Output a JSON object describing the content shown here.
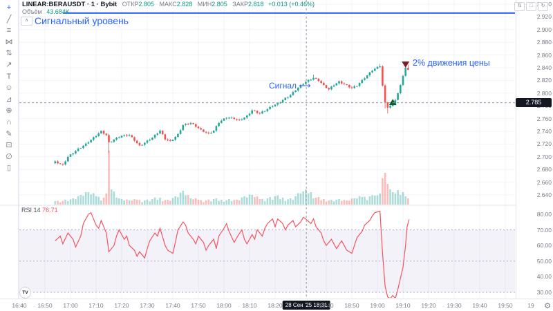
{
  "legend": {
    "symbol": "LINEAR:BERAUSDT · 1 · Bybit",
    "ohlc": [
      {
        "label": "ОТКР",
        "value": "2.805"
      },
      {
        "label": "МАКС",
        "value": "2.828"
      },
      {
        "label": "МИН",
        "value": "2.805"
      },
      {
        "label": "ЗАКР",
        "value": "2.818"
      }
    ],
    "change": "+0.013 (+0.46%)",
    "volume_label": "Объём",
    "volume_value": "43.684K",
    "collapse_glyph": "∧"
  },
  "rsi_legend": {
    "name": "RSI",
    "period": "14",
    "value": "76.71"
  },
  "annotations": {
    "signal_level_label": "Сигнальный уровень",
    "signal_label": "Сигнал",
    "signal_arrow": "⟶",
    "move_label": "2% движения цены"
  },
  "axes": {
    "price_ticks": [
      "2.940",
      "2.920",
      "2.900",
      "2.880",
      "2.860",
      "2.840",
      "2.820",
      "2.800",
      "2.780",
      "2.760",
      "2.740",
      "2.720",
      "2.700",
      "2.680",
      "2.660",
      "2.640"
    ],
    "rsi_ticks": [
      {
        "v": 80,
        "label": "80.00"
      },
      {
        "v": 70,
        "label": "70.00"
      },
      {
        "v": 60,
        "label": "60.00"
      },
      {
        "v": 50,
        "label": "50.00"
      },
      {
        "v": 40,
        "label": "40.00"
      },
      {
        "v": 30,
        "label": "30.00"
      }
    ],
    "time_ticks": [
      {
        "t": 0,
        "label": "16:40"
      },
      {
        "t": 10,
        "label": "16:50"
      },
      {
        "t": 20,
        "label": "17:00"
      },
      {
        "t": 30,
        "label": "17:10"
      },
      {
        "t": 40,
        "label": "17:20"
      },
      {
        "t": 50,
        "label": "17:30"
      },
      {
        "t": 60,
        "label": "17:40"
      },
      {
        "t": 70,
        "label": "17:50"
      },
      {
        "t": 80,
        "label": "18:00"
      },
      {
        "t": 90,
        "label": "18:10"
      },
      {
        "t": 100,
        "label": "18:20"
      },
      {
        "t": 110,
        "label": ""
      },
      {
        "t": 120,
        "label": "18:40"
      },
      {
        "t": 130,
        "label": "18:50"
      },
      {
        "t": 140,
        "label": "19:00"
      },
      {
        "t": 150,
        "label": "19:10"
      },
      {
        "t": 160,
        "label": "19:20"
      },
      {
        "t": 170,
        "label": "19:30"
      },
      {
        "t": 180,
        "label": "19:40"
      },
      {
        "t": 190,
        "label": "19:50"
      },
      {
        "t": 200,
        "label": "19"
      }
    ],
    "crosshair_price": "2.785",
    "crosshair_time": "28 Сен '25 18:31"
  },
  "toolbar_icons": [
    {
      "name": "crosshair-tool",
      "glyph": "+"
    },
    {
      "name": "trend-line-tool",
      "glyph": "╱"
    },
    {
      "name": "fib-retracement-tool",
      "glyph": "≡"
    },
    {
      "name": "xabcd-pattern-tool",
      "glyph": "⋈"
    },
    {
      "name": "position-tool",
      "glyph": "⇅"
    },
    {
      "name": "arrow-annotation-tool",
      "glyph": "↗"
    },
    {
      "name": "text-tool",
      "glyph": "T"
    },
    {
      "name": "emoji-tool",
      "glyph": "☺"
    },
    {
      "name": "measure-tool",
      "glyph": "⊿"
    },
    {
      "name": "zoom-in-tool",
      "glyph": "⊕"
    },
    {
      "name": "magnet-tool",
      "glyph": "∩"
    },
    {
      "name": "drawing-tool",
      "glyph": "✎"
    },
    {
      "name": "lock-drawings-tool",
      "glyph": "⊡"
    },
    {
      "name": "hide-drawings-tool",
      "glyph": "∅"
    },
    {
      "name": "remove-drawings-tool",
      "glyph": "▯"
    }
  ],
  "pane_buttons": [
    {
      "name": "pane-move-button",
      "glyph": "⇅"
    },
    {
      "name": "pane-maximize-button",
      "glyph": "□"
    },
    {
      "name": "pane-reset-button",
      "glyph": "↻"
    }
  ],
  "footer": {
    "logo_text": "TV",
    "gear_glyph": "⚙"
  },
  "chart_data": {
    "type": "candlestick",
    "panes": [
      "price+volume",
      "RSI(14)"
    ],
    "symbol": "LINEAR:BERAUSDT",
    "interval_minutes": 1,
    "exchange": "Bybit",
    "hovered_candle": {
      "time": "18:31",
      "open": 2.805,
      "high": 2.828,
      "low": 2.805,
      "close": 2.818,
      "change": "+0.013 (+0.46%)",
      "volume": "43.684K"
    },
    "price_axis": {
      "min": 2.64,
      "max": 2.94,
      "step": 0.02
    },
    "time_axis_start": "16:40",
    "time_axis_end": "19:50",
    "signal_level": {
      "price": 2.926,
      "t_start": 17,
      "label": "Сигнальный уровень"
    },
    "crosshair": {
      "t": 112.2,
      "price": 2.785
    },
    "price_waypoints": [
      [
        14,
        2.692
      ],
      [
        17,
        2.687
      ],
      [
        19,
        2.7
      ],
      [
        23,
        2.712
      ],
      [
        26,
        2.72
      ],
      [
        29,
        2.73
      ],
      [
        32,
        2.74
      ],
      [
        34,
        2.734
      ],
      [
        35,
        2.722
      ],
      [
        37,
        2.727
      ],
      [
        40,
        2.733
      ],
      [
        43,
        2.734
      ],
      [
        45,
        2.726
      ],
      [
        47,
        2.717
      ],
      [
        49,
        2.722
      ],
      [
        52,
        2.73
      ],
      [
        55,
        2.741
      ],
      [
        57,
        2.728
      ],
      [
        59,
        2.724
      ],
      [
        62,
        2.735
      ],
      [
        64,
        2.75
      ],
      [
        67,
        2.753
      ],
      [
        69,
        2.748
      ],
      [
        71,
        2.742
      ],
      [
        74,
        2.736
      ],
      [
        76,
        2.741
      ],
      [
        78,
        2.754
      ],
      [
        81,
        2.762
      ],
      [
        84,
        2.76
      ],
      [
        86,
        2.757
      ],
      [
        89,
        2.764
      ],
      [
        91,
        2.773
      ],
      [
        94,
        2.768
      ],
      [
        97,
        2.775
      ],
      [
        99,
        2.78
      ],
      [
        102,
        2.786
      ],
      [
        104,
        2.792
      ],
      [
        106,
        2.797
      ],
      [
        108,
        2.805
      ],
      [
        110,
        2.812
      ],
      [
        112,
        2.818
      ],
      [
        115,
        2.824
      ],
      [
        117,
        2.82
      ],
      [
        119,
        2.812
      ],
      [
        121,
        2.806
      ],
      [
        123,
        2.813
      ],
      [
        125,
        2.818
      ],
      [
        128,
        2.812
      ],
      [
        130,
        2.808
      ],
      [
        132,
        2.812
      ],
      [
        134,
        2.82
      ],
      [
        136,
        2.828
      ],
      [
        138,
        2.836
      ],
      [
        141,
        2.843
      ],
      [
        142,
        2.812
      ],
      [
        143,
        2.785
      ],
      [
        144,
        2.778
      ],
      [
        145,
        2.78
      ],
      [
        146,
        2.782
      ],
      [
        147,
        2.79
      ],
      [
        148,
        2.8
      ],
      [
        149,
        2.812
      ],
      [
        150,
        2.828
      ],
      [
        151,
        2.84
      ],
      [
        152,
        2.836
      ]
    ],
    "wick_overrides": {
      "35": {
        "low": 2.706
      },
      "115": {
        "high": 2.829
      },
      "141": {
        "high": 2.846
      },
      "143": {
        "low": 2.776
      },
      "144": {
        "low": 2.768
      },
      "152": {
        "high": 2.845
      }
    },
    "volume_waypoints": [
      [
        14,
        5
      ],
      [
        18,
        7
      ],
      [
        21,
        9
      ],
      [
        24,
        14
      ],
      [
        27,
        18
      ],
      [
        30,
        12
      ],
      [
        33,
        10
      ],
      [
        34,
        16
      ],
      [
        35,
        78
      ],
      [
        36,
        22
      ],
      [
        38,
        10
      ],
      [
        40,
        8
      ],
      [
        43,
        6
      ],
      [
        46,
        7
      ],
      [
        49,
        6
      ],
      [
        52,
        8
      ],
      [
        55,
        10
      ],
      [
        58,
        7
      ],
      [
        61,
        12
      ],
      [
        64,
        20
      ],
      [
        67,
        9
      ],
      [
        70,
        7
      ],
      [
        73,
        6
      ],
      [
        76,
        8
      ],
      [
        79,
        7
      ],
      [
        82,
        8
      ],
      [
        85,
        7
      ],
      [
        88,
        12
      ],
      [
        91,
        14
      ],
      [
        94,
        8
      ],
      [
        97,
        9
      ],
      [
        100,
        12
      ],
      [
        103,
        10
      ],
      [
        106,
        9
      ],
      [
        108,
        12
      ],
      [
        110,
        16
      ],
      [
        112,
        22
      ],
      [
        114,
        18
      ],
      [
        116,
        10
      ],
      [
        119,
        8
      ],
      [
        122,
        7
      ],
      [
        125,
        8
      ],
      [
        128,
        6
      ],
      [
        131,
        9
      ],
      [
        134,
        11
      ],
      [
        137,
        12
      ],
      [
        139,
        13
      ],
      [
        141,
        16
      ],
      [
        142,
        38
      ],
      [
        143,
        46
      ],
      [
        144,
        30
      ],
      [
        145,
        22
      ],
      [
        146,
        18
      ],
      [
        147,
        16
      ],
      [
        148,
        21
      ],
      [
        149,
        14
      ],
      [
        150,
        18
      ],
      [
        151,
        12
      ],
      [
        152,
        9
      ]
    ],
    "rsi": {
      "length": 14,
      "last_value": 76.71,
      "band_upper": 70,
      "band_lower": 30,
      "band_middle": 50,
      "points": [
        [
          14,
          63
        ],
        [
          16,
          66
        ],
        [
          17,
          61
        ],
        [
          19,
          68
        ],
        [
          21,
          64
        ],
        [
          22,
          59
        ],
        [
          24,
          66
        ],
        [
          25,
          74
        ],
        [
          27,
          80
        ],
        [
          28,
          81
        ],
        [
          30,
          73
        ],
        [
          31,
          71
        ],
        [
          32,
          76
        ],
        [
          34,
          68
        ],
        [
          35,
          56
        ],
        [
          37,
          60
        ],
        [
          38,
          66
        ],
        [
          39,
          70
        ],
        [
          41,
          64
        ],
        [
          42,
          66
        ],
        [
          43,
          60
        ],
        [
          45,
          57
        ],
        [
          46,
          53
        ],
        [
          47,
          56
        ],
        [
          49,
          52
        ],
        [
          50,
          58
        ],
        [
          51,
          63
        ],
        [
          53,
          68
        ],
        [
          54,
          66
        ],
        [
          55,
          71
        ],
        [
          57,
          60
        ],
        [
          58,
          57
        ],
        [
          60,
          55
        ],
        [
          61,
          62
        ],
        [
          62,
          70
        ],
        [
          64,
          75
        ],
        [
          65,
          73
        ],
        [
          66,
          68
        ],
        [
          68,
          64
        ],
        [
          69,
          61
        ],
        [
          70,
          66
        ],
        [
          72,
          62
        ],
        [
          73,
          57
        ],
        [
          74,
          60
        ],
        [
          76,
          64
        ],
        [
          77,
          58
        ],
        [
          78,
          66
        ],
        [
          80,
          71
        ],
        [
          81,
          74
        ],
        [
          82,
          69
        ],
        [
          84,
          62
        ],
        [
          85,
          65
        ],
        [
          87,
          70
        ],
        [
          88,
          64
        ],
        [
          89,
          61
        ],
        [
          91,
          67
        ],
        [
          92,
          64
        ],
        [
          93,
          70
        ],
        [
          95,
          66
        ],
        [
          96,
          71
        ],
        [
          97,
          74
        ],
        [
          99,
          77
        ],
        [
          100,
          72
        ],
        [
          101,
          77
        ],
        [
          103,
          74
        ],
        [
          104,
          70
        ],
        [
          105,
          73
        ],
        [
          107,
          76
        ],
        [
          108,
          72
        ],
        [
          110,
          75
        ],
        [
          111,
          78
        ],
        [
          112,
          77
        ],
        [
          114,
          74
        ],
        [
          115,
          77
        ],
        [
          116,
          72
        ],
        [
          118,
          68
        ],
        [
          119,
          63
        ],
        [
          120,
          60
        ],
        [
          122,
          64
        ],
        [
          123,
          61
        ],
        [
          124,
          58
        ],
        [
          126,
          63
        ],
        [
          127,
          60
        ],
        [
          128,
          57
        ],
        [
          130,
          55
        ],
        [
          131,
          60
        ],
        [
          132,
          65
        ],
        [
          134,
          69
        ],
        [
          135,
          73
        ],
        [
          137,
          76
        ],
        [
          138,
          79
        ],
        [
          139,
          81
        ],
        [
          141,
          82
        ],
        [
          142,
          55
        ],
        [
          143,
          34
        ],
        [
          144,
          27
        ],
        [
          145,
          26
        ],
        [
          146,
          28
        ],
        [
          147,
          26
        ],
        [
          148,
          32
        ],
        [
          150,
          46
        ],
        [
          151,
          60
        ],
        [
          151.6,
          72
        ],
        [
          152.4,
          76.7
        ]
      ]
    },
    "markers": [
      {
        "type": "up",
        "t": 146,
        "price": 2.791
      },
      {
        "type": "down",
        "t": 151,
        "price": 2.84
      }
    ],
    "colors": {
      "up": "#26a69a",
      "down": "#ef5350",
      "vol_up": "rgba(38,166,154,0.38)",
      "vol_down": "rgba(239,83,80,0.38)",
      "accent": "#2962ff",
      "grid": "#f0f3fa",
      "separator": "#e0e3eb",
      "axis_text": "#787b86",
      "value_green": "#089981",
      "rsi_line": "#f7525f",
      "rsi_band": "rgba(142,124,195,0.10)",
      "rsi_band_border": "#b3a6cc",
      "crosshair": "#9598a1",
      "crosshair_label_bg": "#131722",
      "marker_up": "#0f5b33",
      "marker_down": "#7e1d22"
    }
  }
}
